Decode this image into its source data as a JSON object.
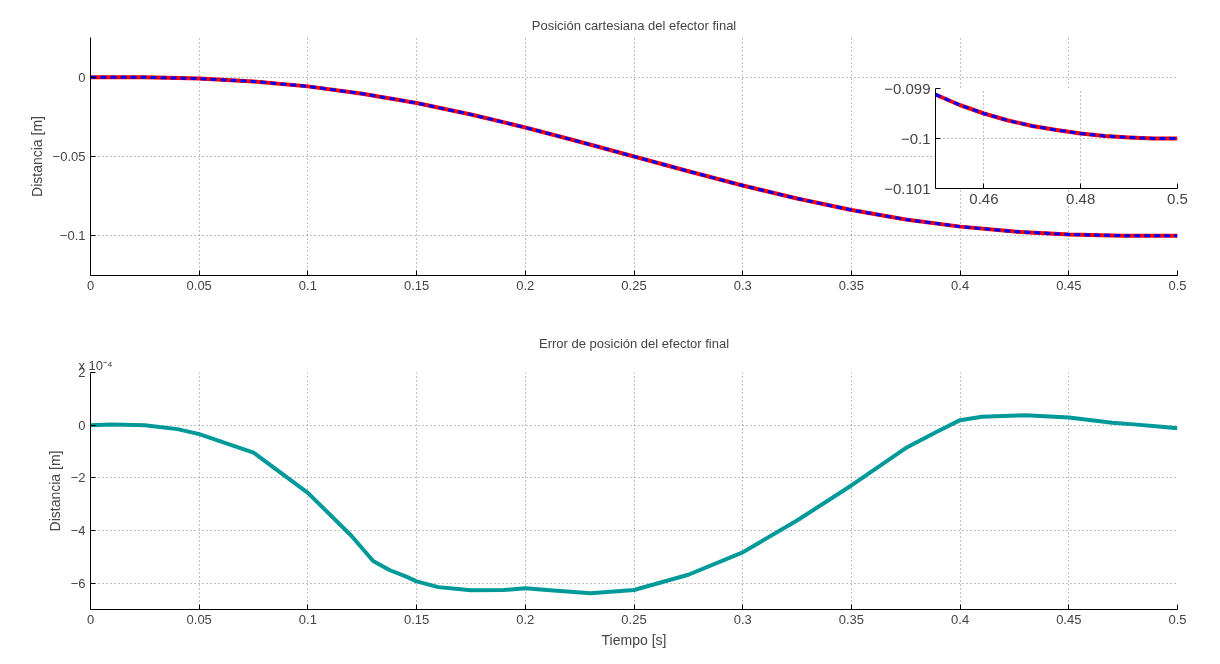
{
  "chart_data": [
    {
      "type": "line",
      "title": "Posición cartesiana del efector final",
      "ylabel": "Distancia [m]",
      "xlim": [
        0,
        0.5
      ],
      "ylim": [
        -0.125,
        0.025
      ],
      "xticks": [
        0,
        0.05,
        0.1,
        0.15,
        0.2,
        0.25,
        0.3,
        0.35,
        0.4,
        0.45,
        0.5
      ],
      "yticks": [
        -0.1,
        -0.05,
        0
      ],
      "grid": true,
      "x": [
        0,
        0.025,
        0.05,
        0.075,
        0.1,
        0.125,
        0.15,
        0.175,
        0.2,
        0.225,
        0.25,
        0.275,
        0.3,
        0.325,
        0.35,
        0.375,
        0.4,
        0.425,
        0.45,
        0.475,
        0.5
      ],
      "series": [
        {
          "color": "#ff0000",
          "line_style": "solid",
          "values": [
            0,
            -0.0001,
            -0.0009,
            -0.0027,
            -0.0058,
            -0.0104,
            -0.0163,
            -0.0235,
            -0.0317,
            -0.0407,
            -0.05,
            -0.0593,
            -0.0683,
            -0.0765,
            -0.0837,
            -0.0897,
            -0.0942,
            -0.0973,
            -0.0991,
            -0.0999,
            -0.1
          ]
        },
        {
          "color": "#0000ff",
          "line_style": "dashed",
          "values": [
            0,
            -0.0001,
            -0.0009,
            -0.0027,
            -0.0058,
            -0.0104,
            -0.0163,
            -0.0235,
            -0.0317,
            -0.0407,
            -0.05,
            -0.0593,
            -0.0683,
            -0.0765,
            -0.0837,
            -0.0897,
            -0.0942,
            -0.0973,
            -0.0991,
            -0.0999,
            -0.1
          ]
        }
      ]
    },
    {
      "type": "line",
      "xlim": [
        0.45,
        0.5
      ],
      "ylim": [
        -0.101,
        -0.099
      ],
      "xticks": [
        0.46,
        0.48,
        0.5
      ],
      "yticks": [
        -0.101,
        -0.1,
        -0.099
      ],
      "grid": true,
      "x": [
        0.45,
        0.455,
        0.46,
        0.465,
        0.47,
        0.475,
        0.48,
        0.485,
        0.49,
        0.495,
        0.5
      ],
      "series": [
        {
          "color": "#ff0000",
          "line_style": "solid",
          "values": [
            -0.09912,
            -0.09933,
            -0.0995,
            -0.09964,
            -0.09975,
            -0.09983,
            -0.0999,
            -0.09995,
            -0.09998,
            -0.1,
            -0.1
          ]
        },
        {
          "color": "#0000ff",
          "line_style": "dashed",
          "values": [
            -0.09912,
            -0.09933,
            -0.0995,
            -0.09964,
            -0.09975,
            -0.09983,
            -0.0999,
            -0.09995,
            -0.09998,
            -0.1,
            -0.1
          ]
        }
      ]
    },
    {
      "type": "line",
      "title": "Error de posición del efector final",
      "xlabel": "Tiempo [s]",
      "ylabel": "Distancia [m]",
      "annotations": [
        "x 10⁻⁴"
      ],
      "xlim": [
        0,
        0.5
      ],
      "ylim": [
        -7,
        2
      ],
      "xticks": [
        0,
        0.05,
        0.1,
        0.15,
        0.2,
        0.25,
        0.3,
        0.35,
        0.4,
        0.45,
        0.5
      ],
      "yticks": [
        -6,
        -4,
        -2,
        0,
        2
      ],
      "grid": true,
      "x": [
        0,
        0.01,
        0.025,
        0.04,
        0.05,
        0.075,
        0.1,
        0.12,
        0.13,
        0.1375,
        0.145,
        0.15,
        0.16,
        0.175,
        0.19,
        0.2,
        0.21,
        0.23,
        0.25,
        0.275,
        0.3,
        0.325,
        0.35,
        0.375,
        0.39,
        0.4,
        0.41,
        0.43,
        0.45,
        0.47,
        0.48,
        0.49,
        0.5
      ],
      "series": [
        {
          "color": "#009999",
          "line_style": "solid",
          "values": [
            0,
            0.03,
            0,
            -0.15,
            -0.34,
            -1.04,
            -2.57,
            -4.2,
            -5.16,
            -5.5,
            -5.74,
            -5.93,
            -6.15,
            -6.27,
            -6.26,
            -6.19,
            -6.26,
            -6.38,
            -6.26,
            -5.68,
            -4.83,
            -3.62,
            -2.29,
            -0.87,
            -0.22,
            0.19,
            0.32,
            0.38,
            0.29,
            0.09,
            0.03,
            -0.04,
            -0.12
          ]
        }
      ]
    }
  ]
}
